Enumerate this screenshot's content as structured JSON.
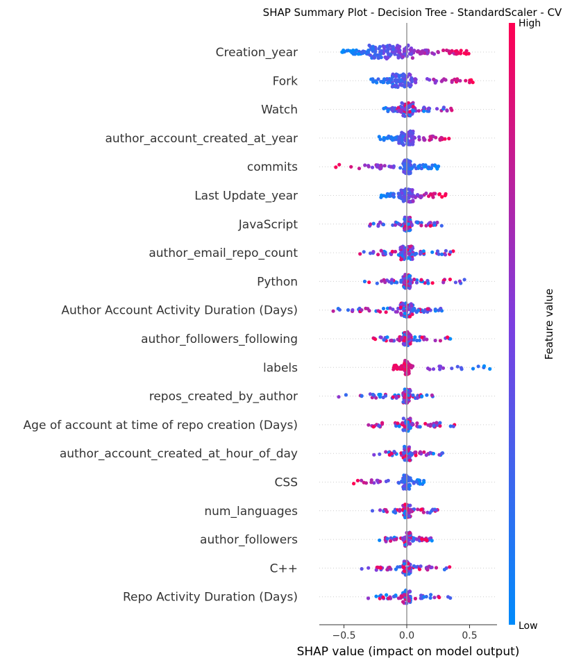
{
  "chart_data": {
    "type": "scatter",
    "subtype": "shap-beeswarm",
    "title": "SHAP Summary Plot - Decision Tree - StandardScaler - CV",
    "xlabel": "SHAP value (impact on model output)",
    "xlim": [
      -0.7,
      0.72
    ],
    "xticks": [
      -0.5,
      0.0,
      0.5
    ],
    "xtick_labels": [
      "−0.5",
      "0.0",
      "0.5"
    ],
    "grid": false,
    "colorbar": {
      "label": "Feature value",
      "high": "High",
      "low": "Low",
      "low_color": "#008bfb",
      "mid_color": "#7c3ee0",
      "high_color": "#ff0052"
    },
    "features": [
      {
        "name": "Creation_year",
        "min": -0.52,
        "max": 0.52,
        "low_side": "negative",
        "core": [
          -0.3,
          0.05
        ],
        "density": 1.6
      },
      {
        "name": "Fork",
        "min": -0.33,
        "max": 0.55,
        "low_side": "negative",
        "core": [
          -0.12,
          0.05
        ],
        "density": 1.0
      },
      {
        "name": "Watch",
        "min": -0.23,
        "max": 0.36,
        "low_side": "mixed",
        "core": [
          -0.05,
          0.05
        ],
        "density": 0.9
      },
      {
        "name": "author_account_created_at_year",
        "min": -0.23,
        "max": 0.36,
        "low_side": "negative",
        "core": [
          -0.07,
          0.05
        ],
        "density": 0.9
      },
      {
        "name": "commits",
        "min": -0.65,
        "max": 0.26,
        "low_side": "positive",
        "core": [
          -0.03,
          0.03
        ],
        "density": 1.1
      },
      {
        "name": "Last Update_year",
        "min": -0.23,
        "max": 0.32,
        "low_side": "negative",
        "core": [
          -0.05,
          0.05
        ],
        "density": 0.9
      },
      {
        "name": "JavaScript",
        "min": -0.36,
        "max": 0.29,
        "low_side": "mixed",
        "core": [
          -0.02,
          0.03
        ],
        "density": 0.7
      },
      {
        "name": "author_email_repo_count",
        "min": -0.42,
        "max": 0.37,
        "low_side": "mixed",
        "core": [
          -0.05,
          0.05
        ],
        "density": 0.9
      },
      {
        "name": "Python",
        "min": -0.37,
        "max": 0.46,
        "low_side": "mixed",
        "core": [
          -0.03,
          0.03
        ],
        "density": 0.8
      },
      {
        "name": "Author Account Activity Duration (Days)",
        "min": -0.63,
        "max": 0.28,
        "low_side": "mixed",
        "core": [
          -0.05,
          0.05
        ],
        "density": 0.9
      },
      {
        "name": "author_followers_following",
        "min": -0.28,
        "max": 0.35,
        "low_side": "mixed",
        "core": [
          -0.03,
          0.03
        ],
        "density": 0.8
      },
      {
        "name": "labels",
        "min": -0.12,
        "max": 0.68,
        "low_side": "positive",
        "core": [
          -0.02,
          0.02
        ],
        "density": 0.9
      },
      {
        "name": "repos_created_by_author",
        "min": -0.64,
        "max": 0.22,
        "low_side": "mixed",
        "core": [
          -0.03,
          0.03
        ],
        "density": 0.8
      },
      {
        "name": "Age of account at time of repo creation (Days)",
        "min": -0.39,
        "max": 0.38,
        "low_side": "mixed",
        "core": [
          -0.03,
          0.03
        ],
        "density": 0.8
      },
      {
        "name": "author_account_created_at_hour_of_day",
        "min": -0.27,
        "max": 0.3,
        "low_side": "mixed",
        "core": [
          -0.03,
          0.03
        ],
        "density": 0.7
      },
      {
        "name": "CSS",
        "min": -0.48,
        "max": 0.17,
        "low_side": "positive",
        "core": [
          -0.03,
          0.03
        ],
        "density": 0.7
      },
      {
        "name": "num_languages",
        "min": -0.31,
        "max": 0.25,
        "low_side": "mixed",
        "core": [
          -0.03,
          0.03
        ],
        "density": 0.7
      },
      {
        "name": "author_followers",
        "min": -0.23,
        "max": 0.21,
        "low_side": "mixed",
        "core": [
          -0.03,
          0.03
        ],
        "density": 0.6
      },
      {
        "name": "C++",
        "min": -0.38,
        "max": 0.35,
        "low_side": "mixed",
        "core": [
          -0.03,
          0.03
        ],
        "density": 0.7
      },
      {
        "name": "Repo Activity Duration (Days)",
        "min": -0.31,
        "max": 0.35,
        "low_side": "mixed",
        "core": [
          -0.03,
          0.03
        ],
        "density": 0.7
      }
    ]
  }
}
